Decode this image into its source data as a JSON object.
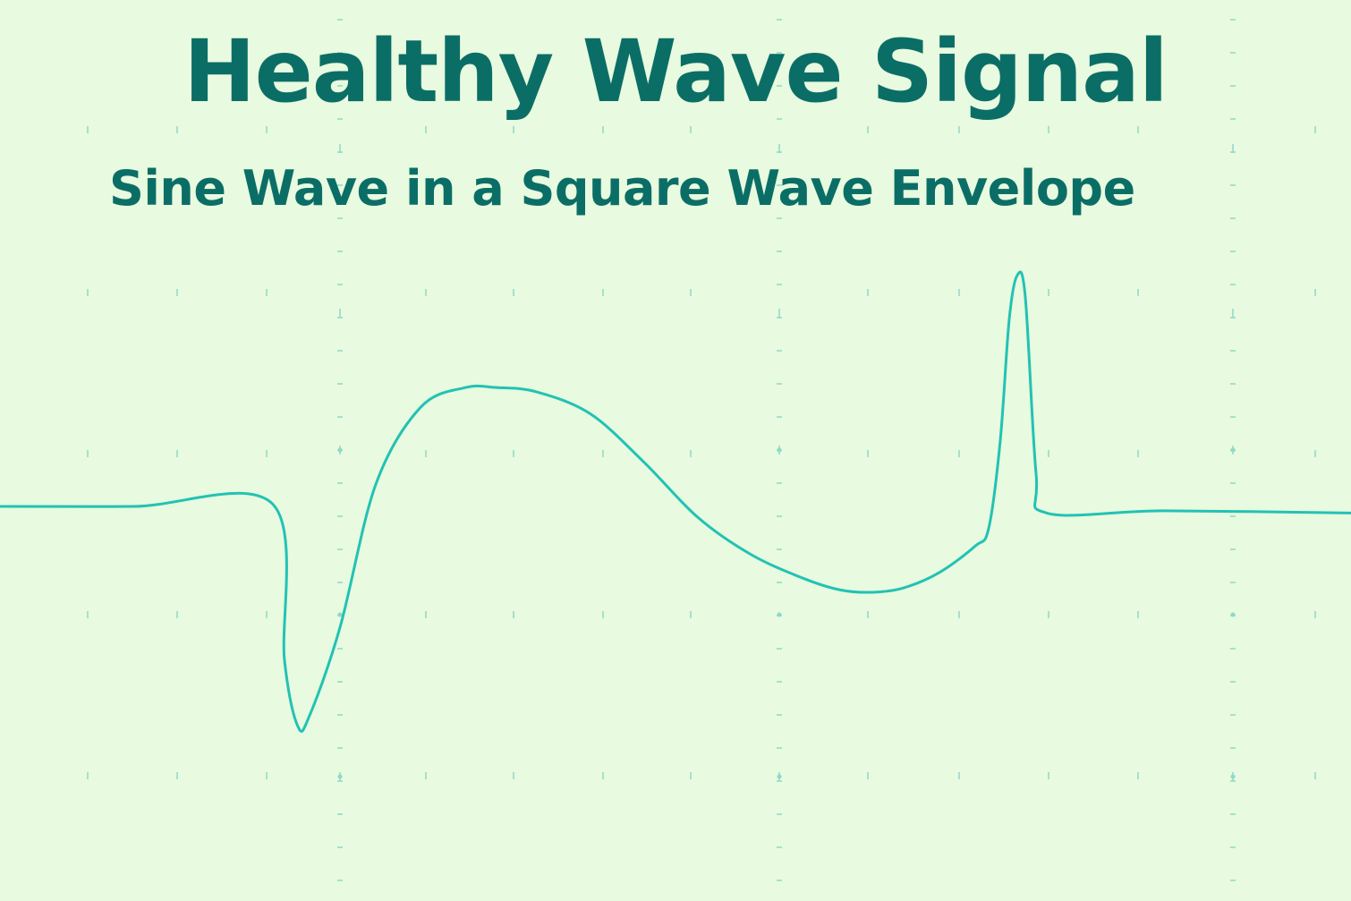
{
  "chart_data": {
    "type": "line",
    "title": "Healthy Wave Signal",
    "subtitle": "Sine Wave in a Square Wave Envelope",
    "xlabel": "",
    "ylabel": "",
    "grid": true,
    "legend": "none",
    "xlim": [
      0,
      1510
    ],
    "ylim": [
      -1,
      1
    ],
    "series": [
      {
        "color": "#22c2b4",
        "points": [
          [
            0,
            0.0
          ],
          [
            150,
            0.0
          ],
          [
            305,
            0.01
          ],
          [
            318,
            -0.7
          ],
          [
            333,
            -1.0
          ],
          [
            346,
            -0.95
          ],
          [
            380,
            -0.55
          ],
          [
            420,
            0.1
          ],
          [
            470,
            0.45
          ],
          [
            520,
            0.54
          ],
          [
            555,
            0.54
          ],
          [
            600,
            0.52
          ],
          [
            660,
            0.42
          ],
          [
            720,
            0.2
          ],
          [
            780,
            -0.05
          ],
          [
            840,
            -0.22
          ],
          [
            900,
            -0.33
          ],
          [
            940,
            -0.38
          ],
          [
            975,
            -0.39
          ],
          [
            1010,
            -0.37
          ],
          [
            1050,
            -0.3
          ],
          [
            1090,
            -0.18
          ],
          [
            1105,
            -0.1
          ],
          [
            1118,
            0.3
          ],
          [
            1128,
            0.85
          ],
          [
            1137,
            1.05
          ],
          [
            1146,
            0.95
          ],
          [
            1158,
            0.15
          ],
          [
            1170,
            -0.03
          ],
          [
            1300,
            -0.02
          ],
          [
            1510,
            -0.03
          ]
        ]
      }
    ],
    "colors": {
      "background": "#e8fadf",
      "text": "#0b6e66",
      "line": "#22c2b4",
      "grid": "#8fd9c8"
    }
  }
}
